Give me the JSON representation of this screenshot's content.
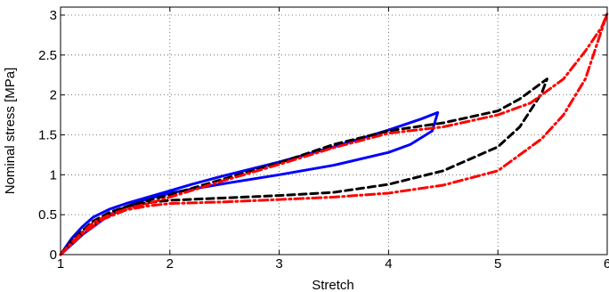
{
  "chart_data": {
    "type": "line",
    "title": "",
    "xlabel": "Stretch",
    "ylabel": "Nominal stress [MPa]",
    "xlim": [
      1,
      6
    ],
    "ylim": [
      0,
      3.1
    ],
    "xticks": [
      1,
      2,
      3,
      4,
      5,
      6
    ],
    "xtick_labels": [
      "1",
      "2",
      "3",
      "4",
      "5",
      "6"
    ],
    "yticks": [
      0,
      0.5,
      1,
      1.5,
      2,
      2.5,
      3
    ],
    "ytick_labels": [
      "0",
      "0.5",
      "1",
      "1.5",
      "2",
      "2.5",
      "3"
    ],
    "grid": true,
    "legend": "none",
    "series": [
      {
        "color": "#0000ff",
        "style": "solid",
        "x": [
          1.0,
          1.1,
          1.2,
          1.3,
          1.45,
          1.6,
          1.8,
          2.0,
          2.2,
          2.5,
          3.0,
          3.5,
          4.0,
          4.3,
          4.45,
          4.4,
          4.2,
          4.0,
          3.5,
          3.0,
          2.5,
          2.2,
          2.0,
          1.8,
          1.6,
          1.4,
          1.2,
          1.0
        ],
        "y": [
          0.0,
          0.2,
          0.35,
          0.47,
          0.57,
          0.64,
          0.72,
          0.8,
          0.88,
          0.99,
          1.16,
          1.35,
          1.56,
          1.7,
          1.78,
          1.55,
          1.38,
          1.28,
          1.12,
          1.0,
          0.89,
          0.82,
          0.77,
          0.7,
          0.6,
          0.45,
          0.25,
          0.0
        ]
      },
      {
        "color": "#000000",
        "style": "dashed",
        "x": [
          1.0,
          1.1,
          1.2,
          1.3,
          1.45,
          1.6,
          1.8,
          2.0,
          2.5,
          3.0,
          3.5,
          4.0,
          4.5,
          5.0,
          5.2,
          5.45,
          5.4,
          5.2,
          5.0,
          4.5,
          4.0,
          3.5,
          3.0,
          2.5,
          2.0,
          1.8,
          1.6,
          1.4,
          1.2,
          1.0
        ],
        "y": [
          0.0,
          0.17,
          0.3,
          0.42,
          0.53,
          0.6,
          0.68,
          0.75,
          0.95,
          1.15,
          1.38,
          1.55,
          1.65,
          1.8,
          1.95,
          2.2,
          2.02,
          1.6,
          1.35,
          1.05,
          0.88,
          0.78,
          0.74,
          0.71,
          0.68,
          0.65,
          0.6,
          0.47,
          0.28,
          0.0
        ]
      },
      {
        "color": "#ff0000",
        "style": "dashdot",
        "x": [
          1.0,
          1.1,
          1.2,
          1.3,
          1.45,
          1.6,
          1.8,
          2.0,
          2.5,
          3.0,
          3.5,
          4.0,
          4.5,
          5.0,
          5.3,
          5.6,
          5.8,
          5.95,
          6.0,
          5.8,
          5.6,
          5.4,
          5.0,
          4.5,
          4.0,
          3.5,
          3.0,
          2.5,
          2.0,
          1.8,
          1.6,
          1.4,
          1.2,
          1.0
        ],
        "y": [
          0.0,
          0.15,
          0.28,
          0.4,
          0.5,
          0.57,
          0.64,
          0.72,
          0.93,
          1.13,
          1.34,
          1.52,
          1.6,
          1.75,
          1.9,
          2.2,
          2.55,
          2.85,
          3.02,
          2.2,
          1.75,
          1.45,
          1.05,
          0.87,
          0.77,
          0.72,
          0.69,
          0.66,
          0.64,
          0.61,
          0.56,
          0.45,
          0.26,
          0.0
        ]
      }
    ]
  }
}
